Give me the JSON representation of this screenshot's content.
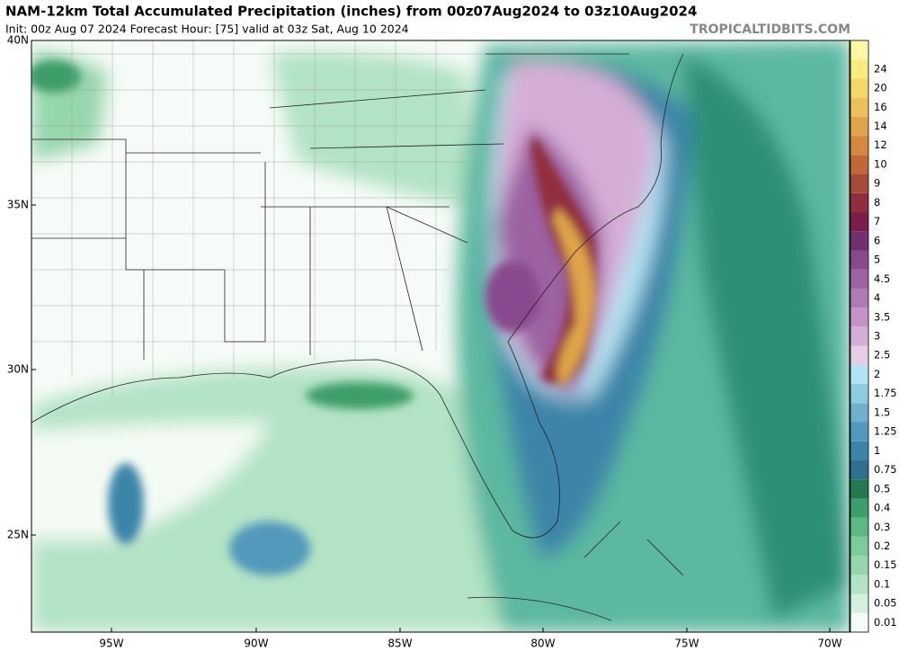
{
  "header": {
    "title": "NAM-12km Total Accumulated Precipitation (inches) from 00z07Aug2024 to 03z10Aug2024",
    "subtitle": "Init: 00z Aug 07 2024   Forecast Hour: [75]   valid at 03z Sat, Aug 10 2024",
    "credit": "TROPICALTIDBITS.COM"
  },
  "map": {
    "lat_labels": [
      "40N",
      "35N",
      "30N",
      "25N"
    ],
    "lon_labels": [
      "95W",
      "90W",
      "85W",
      "80W",
      "75W",
      "70W"
    ]
  },
  "legend": {
    "levels": [
      {
        "label": "0.01",
        "color": "#f4fbf4"
      },
      {
        "label": "0.05",
        "color": "#d4f0dc"
      },
      {
        "label": "0.1",
        "color": "#b2e3c4"
      },
      {
        "label": "0.15",
        "color": "#96d6ad"
      },
      {
        "label": "0.2",
        "color": "#7ccb9a"
      },
      {
        "label": "0.3",
        "color": "#5cb884"
      },
      {
        "label": "0.4",
        "color": "#3c9e6a"
      },
      {
        "label": "0.5",
        "color": "#237a50"
      },
      {
        "label": "0.75",
        "color": "#2f6f8f"
      },
      {
        "label": "1",
        "color": "#3d85a8"
      },
      {
        "label": "1.25",
        "color": "#5399bb"
      },
      {
        "label": "1.5",
        "color": "#6fb0cc"
      },
      {
        "label": "1.75",
        "color": "#8ecbe0"
      },
      {
        "label": "2",
        "color": "#b3e3f2"
      },
      {
        "label": "2.5",
        "color": "#e8cde6"
      },
      {
        "label": "3",
        "color": "#d5aed6"
      },
      {
        "label": "3.5",
        "color": "#c393c5"
      },
      {
        "label": "4",
        "color": "#b07ab4"
      },
      {
        "label": "4.5",
        "color": "#9c62a2"
      },
      {
        "label": "5",
        "color": "#884a8e"
      },
      {
        "label": "6",
        "color": "#72306e"
      },
      {
        "label": "7",
        "color": "#7c1e4a"
      },
      {
        "label": "8",
        "color": "#902e3e"
      },
      {
        "label": "9",
        "color": "#a84a3a"
      },
      {
        "label": "10",
        "color": "#c06838"
      },
      {
        "label": "12",
        "color": "#d48840"
      },
      {
        "label": "14",
        "color": "#e0a44a"
      },
      {
        "label": "16",
        "color": "#ecc05a"
      },
      {
        "label": "20",
        "color": "#f4d86a"
      },
      {
        "label": "24",
        "color": "#faea80"
      }
    ]
  }
}
